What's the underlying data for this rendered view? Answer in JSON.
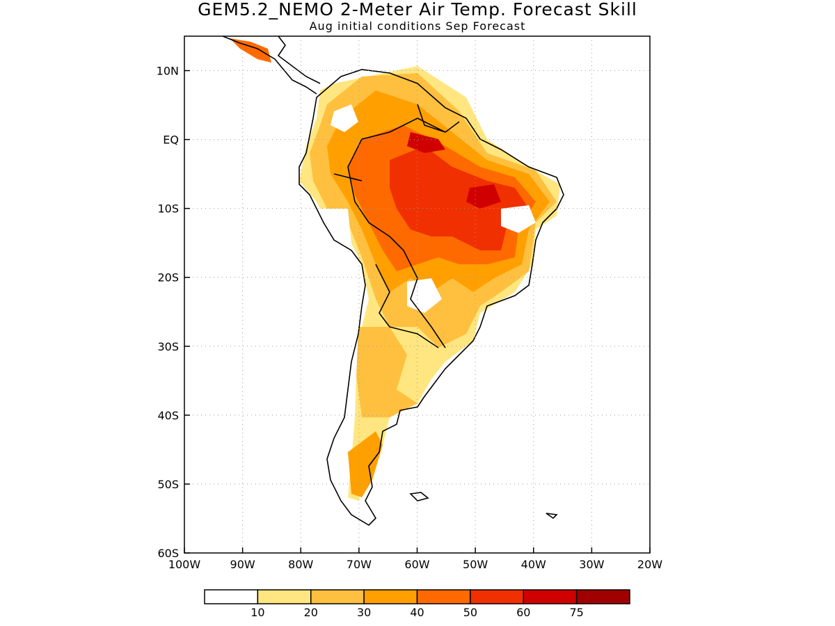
{
  "title": "GEM5.2_NEMO 2-Meter Air Temp. Forecast Skill",
  "subtitle": "Aug initial conditions  Sep Forecast",
  "map": {
    "lon_range": [
      -100,
      -20
    ],
    "lat_range": [
      -60,
      15
    ],
    "lon_ticks": [
      {
        "value": -100,
        "label": "100W"
      },
      {
        "value": -90,
        "label": "90W"
      },
      {
        "value": -80,
        "label": "80W"
      },
      {
        "value": -70,
        "label": "70W"
      },
      {
        "value": -60,
        "label": "60W"
      },
      {
        "value": -50,
        "label": "50W"
      },
      {
        "value": -40,
        "label": "40W"
      },
      {
        "value": -30,
        "label": "30W"
      },
      {
        "value": -20,
        "label": "20W"
      }
    ],
    "lat_ticks": [
      {
        "value": 10,
        "label": "10N"
      },
      {
        "value": 0,
        "label": "EQ"
      },
      {
        "value": -10,
        "label": "10S"
      },
      {
        "value": -20,
        "label": "20S"
      },
      {
        "value": -30,
        "label": "30S"
      },
      {
        "value": -40,
        "label": "40S"
      },
      {
        "value": -50,
        "label": "50S"
      },
      {
        "value": -60,
        "label": "60S"
      }
    ],
    "gridlines": "dotted"
  },
  "colorbar": {
    "colors": [
      "#ffffff",
      "#ffe680",
      "#ffc040",
      "#ffa000",
      "#ff6a00",
      "#f03000",
      "#d00000",
      "#a00000"
    ],
    "labels": [
      "10",
      "20",
      "30",
      "40",
      "50",
      "60",
      "75"
    ]
  }
}
